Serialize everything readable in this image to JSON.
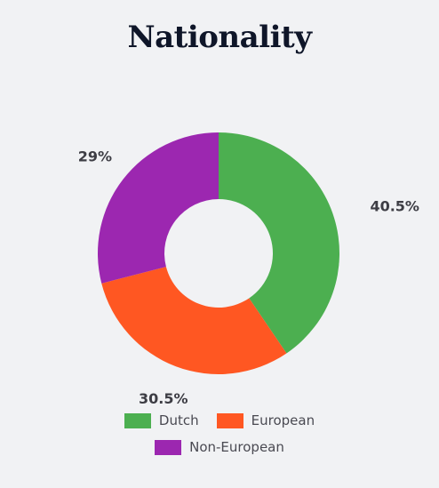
{
  "chart_data": {
    "type": "pie",
    "donut": true,
    "title": "Nationality",
    "categories": [
      "Dutch",
      "European",
      "Non-European"
    ],
    "values": [
      40.5,
      30.5,
      29
    ],
    "labels": [
      "40.5%",
      "30.5%",
      "29%"
    ],
    "colors": [
      "#4caf50",
      "#ff5722",
      "#9c27b0"
    ],
    "legend_position": "bottom"
  }
}
